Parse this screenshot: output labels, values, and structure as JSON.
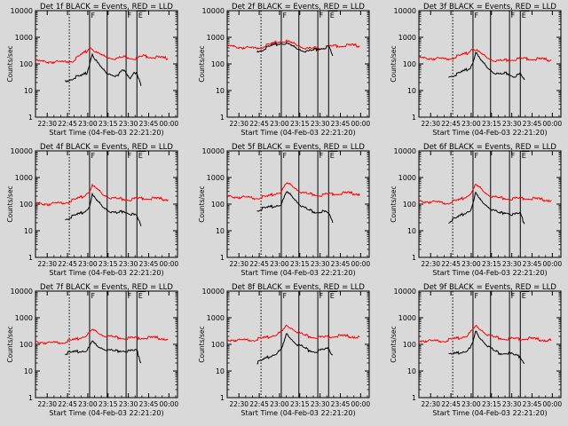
{
  "figure": {
    "background": "#d9d9d9",
    "x_ticks": [
      "22:30",
      "22:45",
      "23:00",
      "23:15",
      "23:30",
      "23:45",
      "00:00"
    ],
    "y_ticks": [
      "1",
      "10",
      "100",
      "1000",
      "10000"
    ],
    "ylabel": "Counts/sec",
    "xlabel": "Start Time (04-Feb-03 22:21:20)",
    "series_colors": {
      "events": "#000000",
      "lld": "#ff0000"
    },
    "marker_labels": [
      "F",
      "F",
      "E"
    ]
  },
  "chart_data": [
    {
      "type": "line",
      "title": "Det 1f BLACK = Events, RED = LLD",
      "xlabel": "Start Time (04-Feb-03 22:21:20)",
      "ylabel": "Counts/sec",
      "x_range_min": [
        0,
        105
      ],
      "y_range": [
        1,
        10000
      ],
      "y_scale": "log",
      "vline_dotted_min": 25,
      "vlines_min": [
        40,
        53,
        67,
        75
      ],
      "marker_labels": [
        "F",
        "F",
        "E"
      ],
      "series": [
        {
          "color": "#000000",
          "x_min": [
            22,
            28,
            34,
            38,
            40,
            42,
            44,
            47,
            50,
            53,
            57,
            61,
            64,
            67,
            70,
            73,
            75,
            78
          ],
          "values": [
            22,
            30,
            35,
            45,
            100,
            250,
            150,
            90,
            60,
            45,
            40,
            35,
            60,
            45,
            30,
            55,
            40,
            15
          ]
        },
        {
          "color": "#ff0000",
          "x_min": [
            0,
            10,
            20,
            28,
            34,
            38,
            40,
            42,
            45,
            50,
            55,
            60,
            65,
            70,
            75,
            80,
            90,
            98
          ],
          "values": [
            130,
            120,
            115,
            135,
            220,
            300,
            420,
            380,
            260,
            200,
            170,
            160,
            180,
            170,
            160,
            200,
            175,
            160
          ]
        }
      ]
    },
    {
      "type": "line",
      "title": "Det 2f BLACK = Events, RED = LLD",
      "xlabel": "Start Time (04-Feb-03 22:21:20)",
      "ylabel": "Counts/sec",
      "x_range_min": [
        0,
        105
      ],
      "y_range": [
        1,
        10000
      ],
      "y_scale": "log",
      "vline_dotted_min": 25,
      "vlines_min": [
        40,
        53,
        67,
        75
      ],
      "marker_labels": [
        "F",
        "F",
        "E"
      ],
      "series": [
        {
          "color": "#000000",
          "x_min": [
            22,
            28,
            34,
            40,
            44,
            50,
            55,
            60,
            65,
            70,
            75,
            78
          ],
          "values": [
            300,
            380,
            500,
            600,
            580,
            420,
            330,
            300,
            340,
            400,
            450,
            200
          ]
        },
        {
          "color": "#ff0000",
          "x_min": [
            0,
            10,
            20,
            30,
            40,
            44,
            50,
            55,
            60,
            70,
            80,
            90,
            98
          ],
          "values": [
            480,
            420,
            380,
            500,
            720,
            700,
            560,
            440,
            380,
            400,
            480,
            500,
            480
          ]
        }
      ]
    },
    {
      "type": "line",
      "title": "Det 3f BLACK = Events, RED = LLD",
      "xlabel": "Start Time (04-Feb-03 22:21:20)",
      "ylabel": "Counts/sec",
      "x_range_min": [
        0,
        105
      ],
      "y_range": [
        1,
        10000
      ],
      "y_scale": "log",
      "vline_dotted_min": 25,
      "vlines_min": [
        40,
        53,
        67,
        75
      ],
      "marker_labels": [
        "F",
        "F",
        "E"
      ],
      "series": [
        {
          "color": "#000000",
          "x_min": [
            22,
            28,
            34,
            38,
            40,
            42,
            45,
            50,
            55,
            60,
            65,
            70,
            75,
            78
          ],
          "values": [
            35,
            40,
            55,
            70,
            120,
            280,
            150,
            80,
            50,
            40,
            45,
            35,
            40,
            25
          ]
        },
        {
          "color": "#ff0000",
          "x_min": [
            0,
            10,
            20,
            30,
            36,
            40,
            42,
            46,
            50,
            55,
            60,
            70,
            80,
            90,
            98
          ],
          "values": [
            170,
            160,
            150,
            200,
            250,
            400,
            330,
            240,
            180,
            140,
            130,
            150,
            160,
            150,
            140
          ]
        }
      ]
    },
    {
      "type": "line",
      "title": "Det 4f BLACK = Events, RED = LLD",
      "xlabel": "Start Time (04-Feb-03 22:21:20)",
      "ylabel": "Counts/sec",
      "x_range_min": [
        0,
        105
      ],
      "y_range": [
        1,
        10000
      ],
      "y_scale": "log",
      "vline_dotted_min": 25,
      "vlines_min": [
        40,
        53,
        67,
        75
      ],
      "marker_labels": [
        "F",
        "F",
        "E"
      ],
      "series": [
        {
          "color": "#000000",
          "x_min": [
            22,
            28,
            34,
            38,
            40,
            42,
            45,
            50,
            55,
            60,
            65,
            70,
            75,
            78
          ],
          "values": [
            28,
            35,
            45,
            60,
            90,
            220,
            140,
            80,
            55,
            45,
            55,
            45,
            35,
            15
          ]
        },
        {
          "color": "#ff0000",
          "x_min": [
            0,
            10,
            20,
            30,
            36,
            40,
            42,
            46,
            50,
            55,
            60,
            70,
            80,
            90,
            98
          ],
          "values": [
            110,
            100,
            110,
            150,
            200,
            320,
            480,
            350,
            230,
            180,
            160,
            150,
            170,
            160,
            150
          ]
        }
      ]
    },
    {
      "type": "line",
      "title": "Det 5f BLACK = Events, RED = LLD",
      "xlabel": "Start Time (04-Feb-03 22:21:20)",
      "ylabel": "Counts/sec",
      "x_range_min": [
        0,
        105
      ],
      "y_range": [
        1,
        10000
      ],
      "y_scale": "log",
      "vline_dotted_min": 25,
      "vlines_min": [
        40,
        53,
        67,
        75
      ],
      "marker_labels": [
        "F",
        "F",
        "E"
      ],
      "series": [
        {
          "color": "#000000",
          "x_min": [
            22,
            28,
            34,
            40,
            44,
            48,
            52,
            56,
            60,
            65,
            70,
            75,
            78
          ],
          "values": [
            60,
            70,
            80,
            100,
            280,
            200,
            120,
            80,
            60,
            50,
            55,
            45,
            20
          ]
        },
        {
          "color": "#ff0000",
          "x_min": [
            0,
            10,
            20,
            30,
            40,
            44,
            48,
            52,
            56,
            60,
            70,
            80,
            90,
            98
          ],
          "values": [
            200,
            180,
            170,
            190,
            300,
            600,
            500,
            350,
            270,
            240,
            220,
            250,
            260,
            240
          ]
        }
      ]
    },
    {
      "type": "line",
      "title": "Det 6f BLACK = Events, RED = LLD",
      "xlabel": "Start Time (04-Feb-03 22:21:20)",
      "ylabel": "Counts/sec",
      "x_range_min": [
        0,
        105
      ],
      "y_range": [
        1,
        10000
      ],
      "y_scale": "log",
      "vline_dotted_min": 25,
      "vlines_min": [
        40,
        53,
        67,
        75
      ],
      "marker_labels": [
        "F",
        "F",
        "E"
      ],
      "series": [
        {
          "color": "#000000",
          "x_min": [
            22,
            28,
            34,
            38,
            40,
            42,
            45,
            50,
            55,
            60,
            65,
            70,
            75,
            78
          ],
          "values": [
            22,
            30,
            45,
            60,
            100,
            260,
            150,
            90,
            60,
            45,
            50,
            40,
            45,
            18
          ]
        },
        {
          "color": "#ff0000",
          "x_min": [
            0,
            10,
            20,
            30,
            36,
            40,
            42,
            46,
            50,
            55,
            60,
            70,
            80,
            90,
            98
          ],
          "values": [
            130,
            120,
            110,
            140,
            200,
            330,
            520,
            380,
            250,
            190,
            170,
            160,
            170,
            150,
            140
          ]
        }
      ]
    },
    {
      "type": "line",
      "title": "Det 7f BLACK = Events, RED = LLD",
      "xlabel": "Start Time (04-Feb-03 22:21:20)",
      "ylabel": "Counts/sec",
      "x_range_min": [
        0,
        105
      ],
      "y_range": [
        1,
        10000
      ],
      "y_scale": "log",
      "vline_dotted_min": 25,
      "vlines_min": [
        40,
        53,
        67,
        75
      ],
      "marker_labels": [
        "F",
        "F",
        "E"
      ],
      "series": [
        {
          "color": "#000000",
          "x_min": [
            22,
            28,
            34,
            38,
            40,
            42,
            45,
            50,
            55,
            60,
            65,
            70,
            75,
            78
          ],
          "values": [
            45,
            50,
            55,
            60,
            80,
            130,
            90,
            70,
            60,
            55,
            60,
            55,
            60,
            20
          ]
        },
        {
          "color": "#ff0000",
          "x_min": [
            0,
            10,
            20,
            30,
            36,
            40,
            42,
            46,
            50,
            55,
            60,
            70,
            80,
            90,
            98
          ],
          "values": [
            130,
            110,
            120,
            150,
            200,
            260,
            350,
            280,
            220,
            200,
            180,
            170,
            180,
            175,
            160
          ]
        }
      ]
    },
    {
      "type": "line",
      "title": "Det 8f BLACK = Events, RED = LLD",
      "xlabel": "Start Time (04-Feb-03 22:21:20)",
      "ylabel": "Counts/sec",
      "x_range_min": [
        0,
        105
      ],
      "y_range": [
        1,
        10000
      ],
      "y_scale": "log",
      "vline_dotted_min": 25,
      "vlines_min": [
        40,
        53,
        67,
        75
      ],
      "marker_labels": [
        "F",
        "F",
        "E"
      ],
      "series": [
        {
          "color": "#000000",
          "x_min": [
            22,
            28,
            34,
            40,
            44,
            48,
            52,
            56,
            60,
            65,
            70,
            75,
            78
          ],
          "values": [
            20,
            28,
            40,
            60,
            250,
            150,
            100,
            80,
            60,
            55,
            60,
            70,
            40
          ]
        },
        {
          "color": "#ff0000",
          "x_min": [
            0,
            10,
            20,
            30,
            40,
            44,
            48,
            52,
            56,
            60,
            70,
            80,
            90,
            98
          ],
          "values": [
            150,
            140,
            150,
            180,
            280,
            500,
            400,
            300,
            230,
            200,
            180,
            210,
            200,
            190
          ]
        }
      ]
    },
    {
      "type": "line",
      "title": "Det 9f BLACK = Events, RED = LLD",
      "xlabel": "Start Time (04-Feb-03 22:21:20)",
      "ylabel": "Counts/sec",
      "x_range_min": [
        0,
        105
      ],
      "y_range": [
        1,
        10000
      ],
      "y_scale": "log",
      "vline_dotted_min": 25,
      "vlines_min": [
        40,
        53,
        67,
        75
      ],
      "marker_labels": [
        "F",
        "F",
        "E"
      ],
      "series": [
        {
          "color": "#000000",
          "x_min": [
            22,
            28,
            34,
            38,
            40,
            42,
            45,
            50,
            55,
            60,
            65,
            70,
            75,
            78
          ],
          "values": [
            40,
            45,
            55,
            70,
            120,
            300,
            180,
            100,
            60,
            45,
            50,
            40,
            35,
            20
          ]
        },
        {
          "color": "#ff0000",
          "x_min": [
            0,
            10,
            20,
            30,
            36,
            40,
            42,
            46,
            50,
            55,
            60,
            70,
            80,
            90,
            98
          ],
          "values": [
            140,
            130,
            140,
            170,
            220,
            350,
            480,
            360,
            250,
            190,
            170,
            160,
            170,
            150,
            140
          ]
        }
      ]
    }
  ]
}
